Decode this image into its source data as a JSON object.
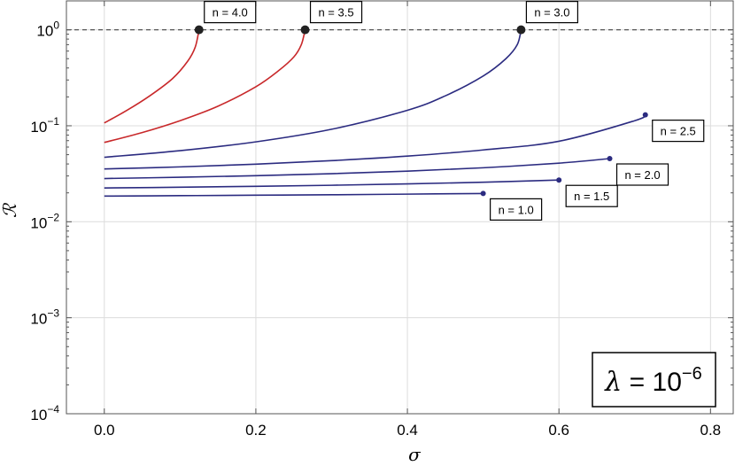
{
  "chart_data": {
    "type": "line",
    "xlabel": "σ",
    "ylabel": "ℛ",
    "xlim": [
      -0.05,
      0.83
    ],
    "ylim": [
      0.0001,
      2.0
    ],
    "yscale": "log",
    "grid": true,
    "x_ticks": [
      "0.0",
      "0.2",
      "0.4",
      "0.6",
      "0.8"
    ],
    "x_tick_values": [
      0.0,
      0.2,
      0.4,
      0.6,
      0.8
    ],
    "y_ticks": [
      {
        "value": 1,
        "base": "10",
        "exp": "0"
      },
      {
        "value": 0.1,
        "base": "10",
        "exp": "−1"
      },
      {
        "value": 0.01,
        "base": "10",
        "exp": "−2"
      },
      {
        "value": 0.001,
        "base": "10",
        "exp": "−3"
      },
      {
        "value": 0.0001,
        "base": "10",
        "exp": "−4"
      }
    ],
    "reference_line": {
      "y": 1.0,
      "style": "dashed"
    },
    "annotation_box": {
      "lambda": "λ",
      "eq": " = ",
      "base": "10",
      "exp": "−6"
    },
    "series": [
      {
        "label": "n = 1.0",
        "color": "#2b2b80",
        "end_marker": "small",
        "x": [
          0.0,
          0.1,
          0.2,
          0.3,
          0.4,
          0.5
        ],
        "y": [
          0.0185,
          0.0187,
          0.0189,
          0.0191,
          0.0194,
          0.0197
        ]
      },
      {
        "label": "n = 1.5",
        "color": "#2b2b80",
        "end_marker": "small",
        "x": [
          0.0,
          0.1,
          0.2,
          0.3,
          0.4,
          0.5,
          0.6
        ],
        "y": [
          0.0225,
          0.0229,
          0.0234,
          0.024,
          0.0248,
          0.0258,
          0.0272
        ]
      },
      {
        "label": "n = 2.0",
        "color": "#2b2b80",
        "end_marker": "small",
        "x": [
          0.0,
          0.1,
          0.2,
          0.3,
          0.4,
          0.5,
          0.6,
          0.667
        ],
        "y": [
          0.0282,
          0.0291,
          0.0302,
          0.0317,
          0.0337,
          0.0365,
          0.0408,
          0.0455
        ]
      },
      {
        "label": "n = 2.5",
        "color": "#2b2b80",
        "end_marker": "small",
        "x": [
          0.0,
          0.1,
          0.2,
          0.3,
          0.4,
          0.5,
          0.6,
          0.7,
          0.714
        ],
        "y": [
          0.0355,
          0.0373,
          0.0398,
          0.0433,
          0.0483,
          0.056,
          0.069,
          0.113,
          0.13
        ]
      },
      {
        "label": "n = 3.0",
        "color": "#2b2b80",
        "end_marker": "large",
        "x": [
          0.0,
          0.1,
          0.2,
          0.3,
          0.4,
          0.45,
          0.5,
          0.53,
          0.545,
          0.55
        ],
        "y": [
          0.047,
          0.055,
          0.068,
          0.092,
          0.145,
          0.205,
          0.33,
          0.5,
          0.7,
          1.0
        ]
      },
      {
        "label": "n = 3.5",
        "color": "#c8282a",
        "end_marker": "large",
        "x": [
          0.0,
          0.05,
          0.1,
          0.15,
          0.2,
          0.23,
          0.25,
          0.26,
          0.265
        ],
        "y": [
          0.067,
          0.085,
          0.113,
          0.16,
          0.255,
          0.375,
          0.52,
          0.7,
          1.0
        ]
      },
      {
        "label": "n = 4.0",
        "color": "#c8282a",
        "end_marker": "large",
        "x": [
          0.0,
          0.03,
          0.06,
          0.09,
          0.11,
          0.12,
          0.125
        ],
        "y": [
          0.107,
          0.145,
          0.205,
          0.31,
          0.47,
          0.66,
          1.0
        ]
      }
    ]
  }
}
